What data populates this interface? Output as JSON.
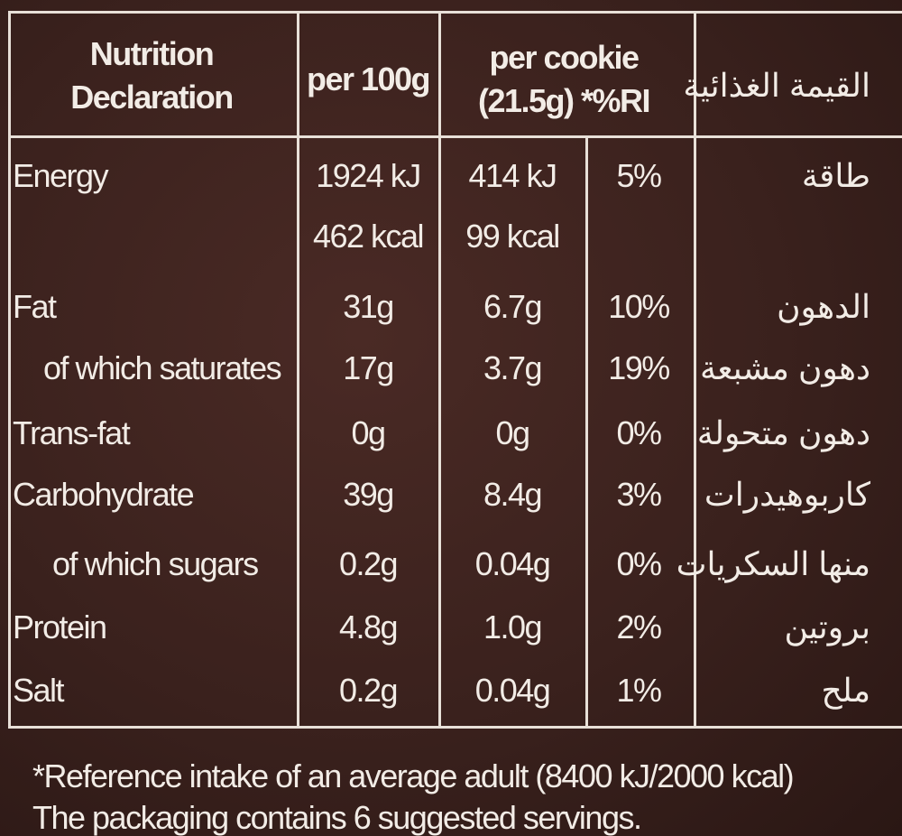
{
  "header": {
    "title": [
      "Nutrition",
      "Declaration"
    ],
    "per_100g": "per 100g",
    "per_cookie": [
      "per cookie",
      "(21.5g) *%RI"
    ],
    "arabic": "القيمة الغذائية"
  },
  "rows": [
    {
      "label": "Energy",
      "per_100g": [
        "1924 kJ",
        "462 kcal"
      ],
      "per_cookie": [
        "414 kJ",
        "99 kcal"
      ],
      "ri": "5%",
      "arabic": "طاقة"
    },
    {
      "label": "Fat",
      "per_100g": "31g",
      "per_cookie": "6.7g",
      "ri": "10%",
      "arabic": "الدهون"
    },
    {
      "label": "of which saturates",
      "per_100g": "17g",
      "per_cookie": "3.7g",
      "ri": "19%",
      "arabic": "دهون مشبعة"
    },
    {
      "label": "Trans-fat",
      "per_100g": "0g",
      "per_cookie": "0g",
      "ri": "0%",
      "arabic": "دهون متحولة"
    },
    {
      "label": "Carbohydrate",
      "per_100g": "39g",
      "per_cookie": "8.4g",
      "ri": "3%",
      "arabic": "كاربوهيدرات"
    },
    {
      "label": "of which sugars",
      "per_100g": "0.2g",
      "per_cookie": "0.04g",
      "ri": "0%",
      "arabic": "منها السكريات"
    },
    {
      "label": "Protein",
      "per_100g": "4.8g",
      "per_cookie": "1.0g",
      "ri": "2%",
      "arabic": "بروتين"
    },
    {
      "label": "Salt",
      "per_100g": "0.2g",
      "per_cookie": "0.04g",
      "ri": "1%",
      "arabic": "ملح"
    }
  ],
  "footer": [
    "*Reference intake of an average adult (8400 kJ/2000 kcal)",
    "The packaging contains 6 suggested servings."
  ]
}
